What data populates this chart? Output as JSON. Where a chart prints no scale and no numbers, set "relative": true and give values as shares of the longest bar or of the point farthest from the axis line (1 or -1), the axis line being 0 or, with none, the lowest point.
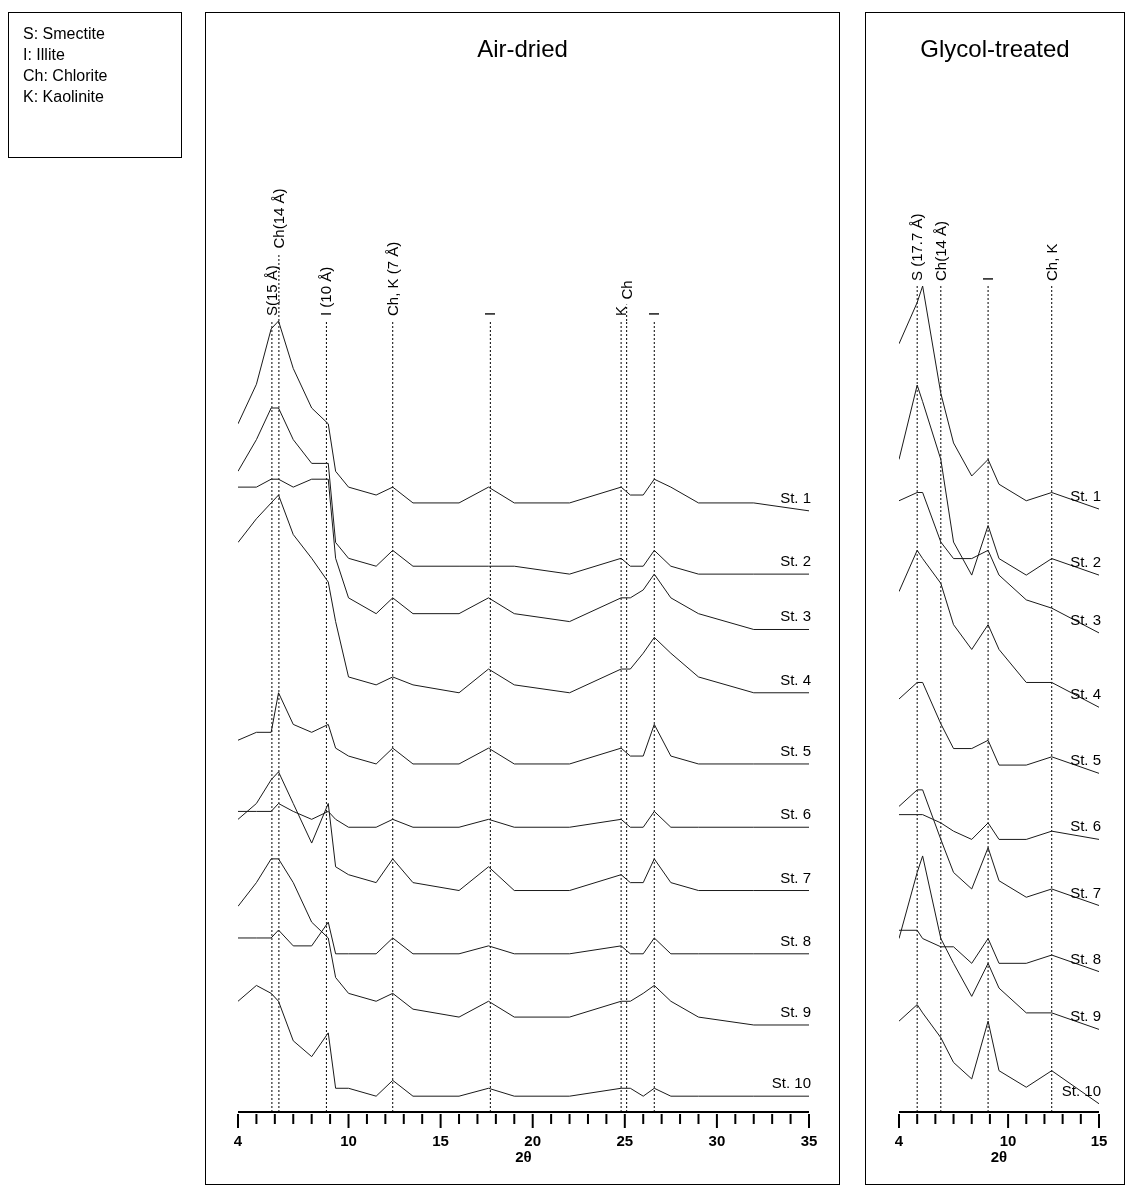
{
  "chart_data": [
    {
      "type": "line",
      "title": "Air-dried",
      "xlabel": "2θ",
      "relative": true,
      "xlim": [
        4,
        35
      ],
      "xticks": [
        4,
        {
          "value": 5,
          "label": null
        },
        {
          "value": 6,
          "label": null
        },
        {
          "value": 7,
          "label": null
        },
        {
          "value": 8,
          "label": null
        },
        {
          "value": 9,
          "label": null
        },
        10,
        {
          "value": 11,
          "label": null
        },
        {
          "value": 12,
          "label": null
        },
        {
          "value": 13,
          "label": null
        },
        {
          "value": 14,
          "label": null
        },
        15,
        {
          "value": 16,
          "label": null
        },
        {
          "value": 17,
          "label": null
        },
        {
          "value": 18,
          "label": null
        },
        {
          "value": 19,
          "label": null
        },
        20,
        {
          "value": 21,
          "label": null
        },
        {
          "value": 22,
          "label": null
        },
        {
          "value": 23,
          "label": null
        },
        {
          "value": 24,
          "label": null
        },
        25,
        {
          "value": 26,
          "label": null
        },
        {
          "value": 27,
          "label": null
        },
        {
          "value": 28,
          "label": null
        },
        {
          "value": 29,
          "label": null
        },
        30,
        {
          "value": 31,
          "label": null
        },
        {
          "value": 32,
          "label": null
        },
        {
          "value": 33,
          "label": null
        },
        {
          "value": 34,
          "label": null
        },
        35
      ],
      "annotations": [
        "S: Smectite",
        "I: Illite",
        "Ch: Chlorite",
        "K: Kaolinite"
      ],
      "x": [
        4,
        5,
        5.8,
        6.2,
        7,
        8,
        8.9,
        9.3,
        10,
        11.5,
        12.4,
        13.5,
        16,
        17.6,
        19,
        22,
        24.8,
        25.3,
        26,
        26.6,
        27.5,
        29,
        32,
        35
      ],
      "series": [
        {
          "name": "St. 1",
          "color": "#1a1a1a",
          "values": [
            0.87,
            0.92,
            0.99,
            1.0,
            0.94,
            0.89,
            0.87,
            0.81,
            0.79,
            0.78,
            0.79,
            0.77,
            0.77,
            0.79,
            0.77,
            0.77,
            0.79,
            0.78,
            0.78,
            0.8,
            0.79,
            0.77,
            0.77,
            0.76
          ]
        },
        {
          "name": "St. 2",
          "color": "#1a1a1a",
          "values": [
            0.81,
            0.85,
            0.89,
            0.89,
            0.85,
            0.82,
            0.82,
            0.72,
            0.7,
            0.69,
            0.71,
            0.69,
            0.69,
            0.69,
            0.69,
            0.68,
            0.7,
            0.69,
            0.69,
            0.71,
            0.69,
            0.68,
            0.68,
            0.68
          ]
        },
        {
          "name": "St. 3",
          "color": "#1a1a1a",
          "values": [
            0.79,
            0.79,
            0.8,
            0.8,
            0.79,
            0.8,
            0.8,
            0.7,
            0.65,
            0.63,
            0.65,
            0.63,
            0.63,
            0.65,
            0.63,
            0.62,
            0.65,
            0.65,
            0.66,
            0.68,
            0.65,
            0.63,
            0.61,
            0.61
          ]
        },
        {
          "name": "St. 4",
          "color": "#1a1a1a",
          "values": [
            0.72,
            0.75,
            0.77,
            0.78,
            0.73,
            0.7,
            0.67,
            0.62,
            0.55,
            0.54,
            0.55,
            0.54,
            0.53,
            0.56,
            0.54,
            0.53,
            0.56,
            0.56,
            0.58,
            0.6,
            0.58,
            0.55,
            0.53,
            0.53
          ]
        },
        {
          "name": "St. 5",
          "color": "#1a1a1a",
          "values": [
            0.47,
            0.48,
            0.48,
            0.53,
            0.49,
            0.48,
            0.49,
            0.46,
            0.45,
            0.44,
            0.46,
            0.44,
            0.44,
            0.46,
            0.44,
            0.44,
            0.46,
            0.45,
            0.45,
            0.49,
            0.45,
            0.44,
            0.44,
            0.44
          ]
        },
        {
          "name": "St. 6",
          "color": "#1a1a1a",
          "values": [
            0.38,
            0.38,
            0.38,
            0.39,
            0.38,
            0.37,
            0.38,
            0.37,
            0.36,
            0.36,
            0.37,
            0.36,
            0.36,
            0.37,
            0.36,
            0.36,
            0.37,
            0.36,
            0.36,
            0.38,
            0.36,
            0.36,
            0.36,
            0.36
          ]
        },
        {
          "name": "St. 7",
          "color": "#1a1a1a",
          "values": [
            0.37,
            0.39,
            0.42,
            0.43,
            0.39,
            0.34,
            0.39,
            0.31,
            0.3,
            0.29,
            0.32,
            0.29,
            0.28,
            0.31,
            0.28,
            0.28,
            0.3,
            0.29,
            0.29,
            0.32,
            0.29,
            0.28,
            0.28,
            0.28
          ]
        },
        {
          "name": "St. 8",
          "color": "#1a1a1a",
          "values": [
            0.22,
            0.22,
            0.22,
            0.23,
            0.21,
            0.21,
            0.24,
            0.2,
            0.2,
            0.2,
            0.22,
            0.2,
            0.2,
            0.21,
            0.2,
            0.2,
            0.21,
            0.2,
            0.2,
            0.22,
            0.2,
            0.2,
            0.2,
            0.2
          ]
        },
        {
          "name": "St. 9",
          "color": "#1a1a1a",
          "values": [
            0.26,
            0.29,
            0.32,
            0.32,
            0.29,
            0.24,
            0.22,
            0.17,
            0.15,
            0.14,
            0.15,
            0.13,
            0.12,
            0.14,
            0.12,
            0.12,
            0.14,
            0.14,
            0.15,
            0.16,
            0.14,
            0.12,
            0.11,
            0.11
          ]
        },
        {
          "name": "St. 10",
          "color": "#1a1a1a",
          "values": [
            0.14,
            0.16,
            0.15,
            0.14,
            0.09,
            0.07,
            0.1,
            0.03,
            0.03,
            0.02,
            0.04,
            0.02,
            0.02,
            0.03,
            0.02,
            0.02,
            0.03,
            0.03,
            0.02,
            0.03,
            0.02,
            0.02,
            0.02,
            0.02
          ]
        }
      ],
      "ref_lines": [
        {
          "axis": "x",
          "value": 5.84,
          "label": "S(15 Å)",
          "color": "#000000",
          "line_style": "dotted"
        },
        {
          "axis": "x",
          "value": 6.22,
          "label": "Ch(14 Å)",
          "color": "#000000",
          "line_style": "dotted"
        },
        {
          "axis": "x",
          "value": 8.8,
          "label": "I (10 Å)",
          "color": "#000000",
          "line_style": "dotted"
        },
        {
          "axis": "x",
          "value": 12.4,
          "label": "Ch, K (7 Å)",
          "color": "#000000",
          "line_style": "dotted"
        },
        {
          "axis": "x",
          "value": 17.7,
          "label": "I",
          "color": "#000000",
          "line_style": "dotted"
        },
        {
          "axis": "x",
          "value": 24.8,
          "label": "K",
          "color": "#000000",
          "line_style": "dotted"
        },
        {
          "axis": "x",
          "value": 25.1,
          "label": "Ch",
          "color": "#000000",
          "line_style": "dotted"
        },
        {
          "axis": "x",
          "value": 26.6,
          "label": "I",
          "color": "#000000",
          "line_style": "dotted"
        }
      ]
    },
    {
      "type": "line",
      "title": "Glycol-treated",
      "xlabel": "2θ",
      "relative": true,
      "xlim": [
        4,
        15
      ],
      "xticks": [
        4,
        {
          "value": 5,
          "label": null
        },
        {
          "value": 6,
          "label": null
        },
        {
          "value": 7,
          "label": null
        },
        {
          "value": 8,
          "label": null
        },
        {
          "value": 9,
          "label": null
        },
        10,
        {
          "value": 11,
          "label": null
        },
        {
          "value": 12,
          "label": null
        },
        {
          "value": 13,
          "label": null
        },
        {
          "value": 14,
          "label": null
        },
        15
      ],
      "x": [
        4,
        5,
        5.3,
        6.3,
        7,
        8,
        8.9,
        9.5,
        11,
        12.4,
        15
      ],
      "series": [
        {
          "name": "St. 1",
          "color": "#1a1a1a",
          "values": [
            0.93,
            0.98,
            1.0,
            0.87,
            0.81,
            0.77,
            0.79,
            0.76,
            0.74,
            0.75,
            0.73
          ]
        },
        {
          "name": "St. 2",
          "color": "#1a1a1a",
          "values": [
            0.79,
            0.88,
            0.86,
            0.79,
            0.69,
            0.65,
            0.71,
            0.67,
            0.65,
            0.67,
            0.65
          ]
        },
        {
          "name": "St. 3",
          "color": "#1a1a1a",
          "values": [
            0.74,
            0.75,
            0.75,
            0.69,
            0.67,
            0.67,
            0.68,
            0.65,
            0.62,
            0.61,
            0.58
          ]
        },
        {
          "name": "St. 4",
          "color": "#1a1a1a",
          "values": [
            0.63,
            0.68,
            0.67,
            0.64,
            0.59,
            0.56,
            0.59,
            0.56,
            0.52,
            0.52,
            0.49
          ]
        },
        {
          "name": "St. 5",
          "color": "#1a1a1a",
          "values": [
            0.5,
            0.52,
            0.52,
            0.47,
            0.44,
            0.44,
            0.45,
            0.42,
            0.42,
            0.43,
            0.41
          ]
        },
        {
          "name": "St. 6",
          "color": "#1a1a1a",
          "values": [
            0.36,
            0.36,
            0.36,
            0.35,
            0.34,
            0.33,
            0.35,
            0.33,
            0.33,
            0.34,
            0.33
          ]
        },
        {
          "name": "St. 7",
          "color": "#1a1a1a",
          "values": [
            0.37,
            0.39,
            0.39,
            0.33,
            0.29,
            0.27,
            0.32,
            0.28,
            0.26,
            0.27,
            0.25
          ]
        },
        {
          "name": "St. 8",
          "color": "#1a1a1a",
          "values": [
            0.22,
            0.22,
            0.21,
            0.2,
            0.2,
            0.18,
            0.21,
            0.18,
            0.18,
            0.19,
            0.17
          ]
        },
        {
          "name": "St. 9",
          "color": "#1a1a1a",
          "values": [
            0.21,
            0.29,
            0.31,
            0.21,
            0.18,
            0.14,
            0.18,
            0.15,
            0.12,
            0.12,
            0.1
          ]
        },
        {
          "name": "St. 10",
          "color": "#1a1a1a",
          "values": [
            0.11,
            0.13,
            0.12,
            0.09,
            0.06,
            0.04,
            0.11,
            0.05,
            0.03,
            0.05,
            0.01
          ]
        }
      ],
      "ref_lines": [
        {
          "axis": "x",
          "value": 5.0,
          "label": "S (17.7 Å)",
          "color": "#000000",
          "line_style": "dotted"
        },
        {
          "axis": "x",
          "value": 6.3,
          "label": "Ch(14 Å)",
          "color": "#000000",
          "line_style": "dotted"
        },
        {
          "axis": "x",
          "value": 8.9,
          "label": "I",
          "color": "#000000",
          "line_style": "dotted"
        },
        {
          "axis": "x",
          "value": 12.4,
          "label": "Ch, K",
          "color": "#000000",
          "line_style": "dotted"
        }
      ]
    }
  ]
}
